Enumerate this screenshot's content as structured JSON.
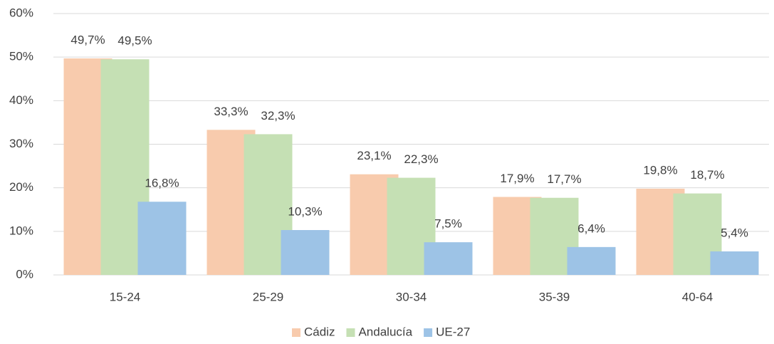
{
  "chart_data": {
    "type": "bar",
    "categories": [
      "15-24",
      "25-29",
      "30-34",
      "35-39",
      "40-64"
    ],
    "series": [
      {
        "name": "Cádiz",
        "color": "#f8cbad",
        "values": [
          49.7,
          33.3,
          23.1,
          17.9,
          19.8
        ],
        "value_labels": [
          "49,7%",
          "33,3%",
          "23,1%",
          "17,9%",
          "19,8%"
        ]
      },
      {
        "name": "Andalucía",
        "color": "#c5e0b4",
        "values": [
          49.5,
          32.3,
          22.3,
          17.7,
          18.7
        ],
        "value_labels": [
          "49,5%",
          "32,3%",
          "22,3%",
          "17,7%",
          "18,7%"
        ]
      },
      {
        "name": "UE-27",
        "color": "#9dc3e6",
        "values": [
          16.8,
          10.3,
          7.5,
          6.4,
          5.4
        ],
        "value_labels": [
          "16,8%",
          "10,3%",
          "7,5%",
          "6,4%",
          "5,4%"
        ]
      }
    ],
    "ylim": [
      0,
      60
    ],
    "yticks": [
      {
        "value": 0,
        "label": "0%"
      },
      {
        "value": 10,
        "label": "10%"
      },
      {
        "value": 20,
        "label": "20%"
      },
      {
        "value": 30,
        "label": "30%"
      },
      {
        "value": 40,
        "label": "40%"
      },
      {
        "value": 50,
        "label": "50%"
      },
      {
        "value": 60,
        "label": "60%"
      }
    ],
    "grid": true,
    "legend": "bottom"
  }
}
